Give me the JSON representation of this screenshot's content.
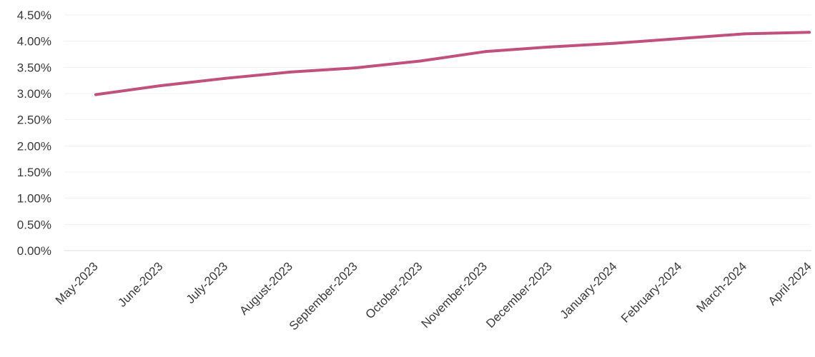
{
  "chart_data": {
    "type": "line",
    "title": "",
    "xlabel": "",
    "ylabel": "",
    "categories": [
      "May-2023",
      "June-2023",
      "July-2023",
      "August-2023",
      "September-2023",
      "October-2023",
      "November-2023",
      "December-2023",
      "January-2024",
      "February-2024",
      "March-2024",
      "April-2024"
    ],
    "series": [
      {
        "values": [
          2.98,
          3.15,
          3.29,
          3.41,
          3.49,
          3.62,
          3.8,
          3.89,
          3.96,
          4.05,
          4.14,
          4.17
        ],
        "color": "#c0507e"
      }
    ],
    "ylim": [
      0,
      4.5
    ],
    "yticks": [
      "0.00%",
      "0.50%",
      "1.00%",
      "1.50%",
      "2.00%",
      "2.50%",
      "3.00%",
      "3.50%",
      "4.00%",
      "4.50%"
    ],
    "ytick_values": [
      0,
      0.5,
      1.0,
      1.5,
      2.0,
      2.5,
      3.0,
      3.5,
      4.0,
      4.5
    ],
    "grid": true,
    "legend": "none"
  }
}
